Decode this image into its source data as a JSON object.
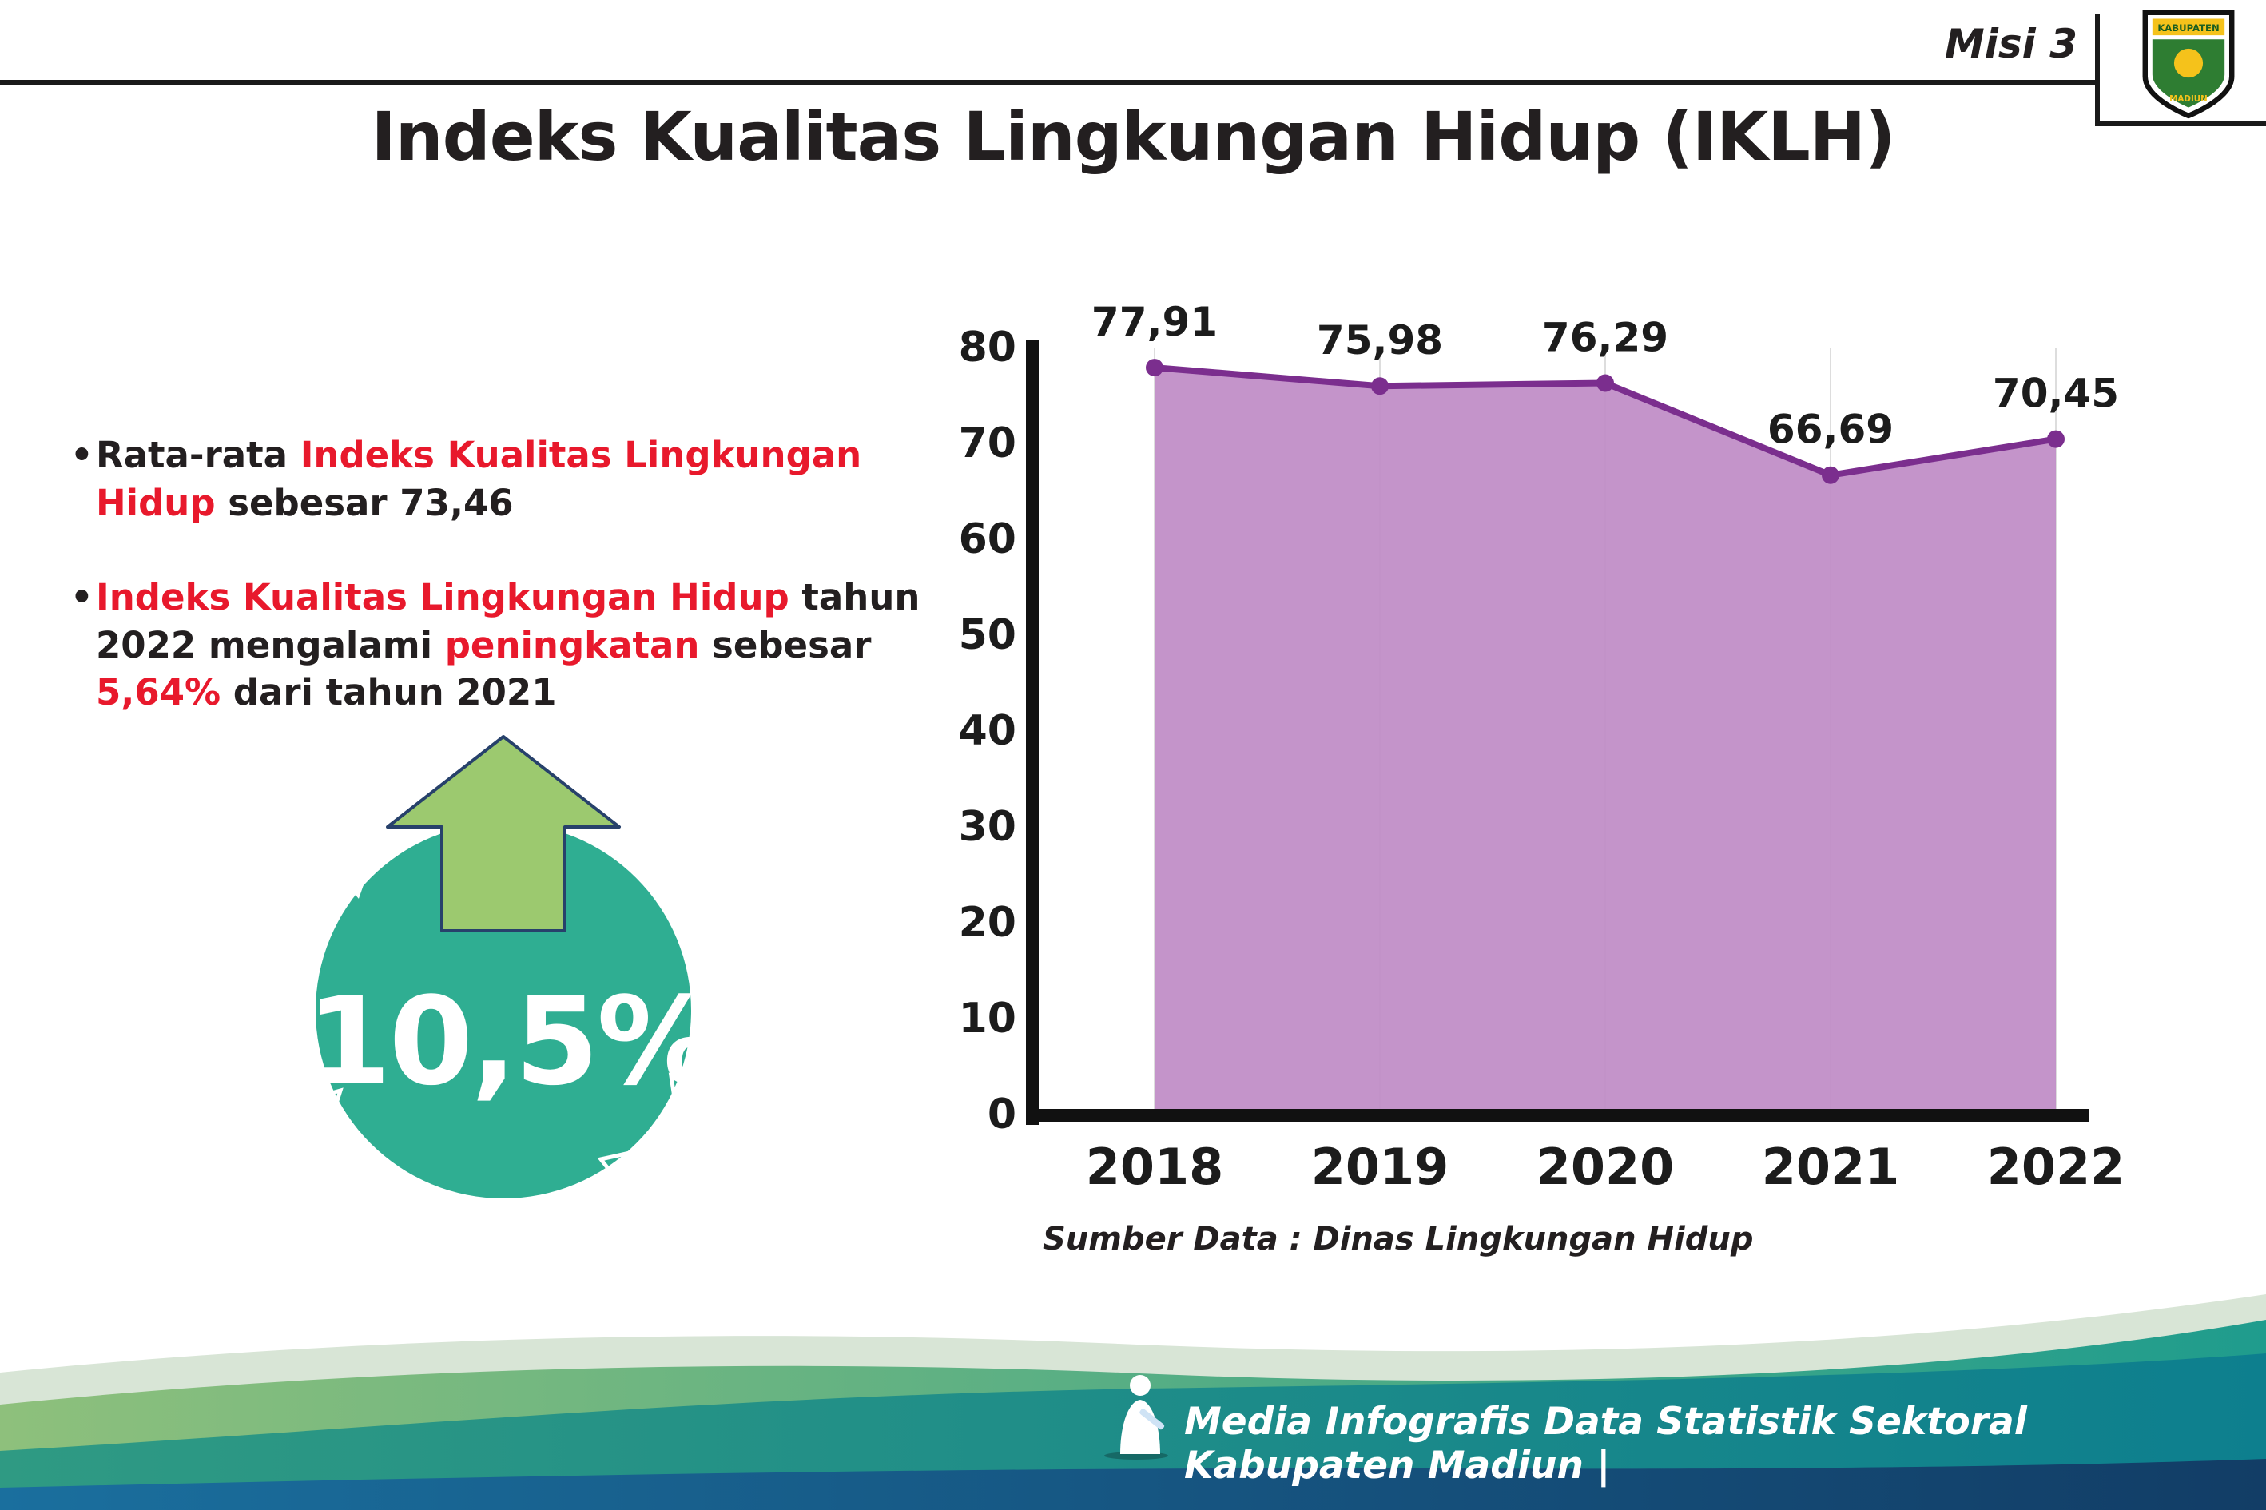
{
  "header": {
    "misi_label": "Misi 3",
    "title": "Indeks Kualitas Lingkungan Hidup (IKLH)"
  },
  "logo": {
    "top_text": "KABUPATEN",
    "bottom_text": "MADIUN"
  },
  "bullets": {
    "b1": {
      "parts": [
        {
          "text": "Rata-rata "
        },
        {
          "text": "Indeks Kualitas Lingkungan Hidup"
        },
        {
          "text": " sebesar 73,46"
        }
      ]
    },
    "b2": {
      "parts": [
        {
          "text": "Indeks Kualitas Lingkungan Hidup"
        },
        {
          "text": " tahun 2022 mengalami "
        },
        {
          "text": "peningkatan"
        },
        {
          "text": " sebesar "
        },
        {
          "text": "5,64%"
        },
        {
          "text": " dari tahun 2021"
        }
      ]
    }
  },
  "badge": {
    "percentage": "10,5%"
  },
  "chart_data": {
    "type": "area",
    "title": "Indeks Kualitas Lingkungan Hidup (IKLH)",
    "categories": [
      "2018",
      "2019",
      "2020",
      "2021",
      "2022"
    ],
    "values": [
      77.91,
      75.98,
      76.29,
      66.69,
      70.45
    ],
    "value_labels": [
      "77,91",
      "75,98",
      "76,29",
      "66,69",
      "70,45"
    ],
    "ylim": [
      0,
      80
    ],
    "yticks": [
      0,
      10,
      20,
      30,
      40,
      50,
      60,
      70,
      80
    ],
    "xlabel": "",
    "ylabel": "",
    "grid": "faint-vertical",
    "legend": "none",
    "source": "Sumber Data : Dinas Lingkungan Hidup"
  },
  "footer": {
    "caption": "Media Infografis Data Statistik Sektoral Kabupaten Madiun |"
  },
  "colors": {
    "text_dark": "#231f20",
    "accent_red": "#e8192c",
    "badge_teal": "#2fae92",
    "arrow_green": "#9cc96f",
    "arrow_outline": "#27416b",
    "chart_fill": "#c08cc6",
    "chart_line": "#7b2e8e",
    "axis_black": "#111111",
    "gridline": "#dddddd",
    "footer_pale": "#d8e5d6",
    "footer_green_left": "#8ec07c",
    "footer_green_right": "#1f9c8d",
    "footer_teal_left": "#2f9a83",
    "footer_teal_right": "#0d7f8e",
    "footer_navy_left": "#1a6f9e",
    "footer_navy_right": "#123d66",
    "footer_text": "#ffffff"
  }
}
